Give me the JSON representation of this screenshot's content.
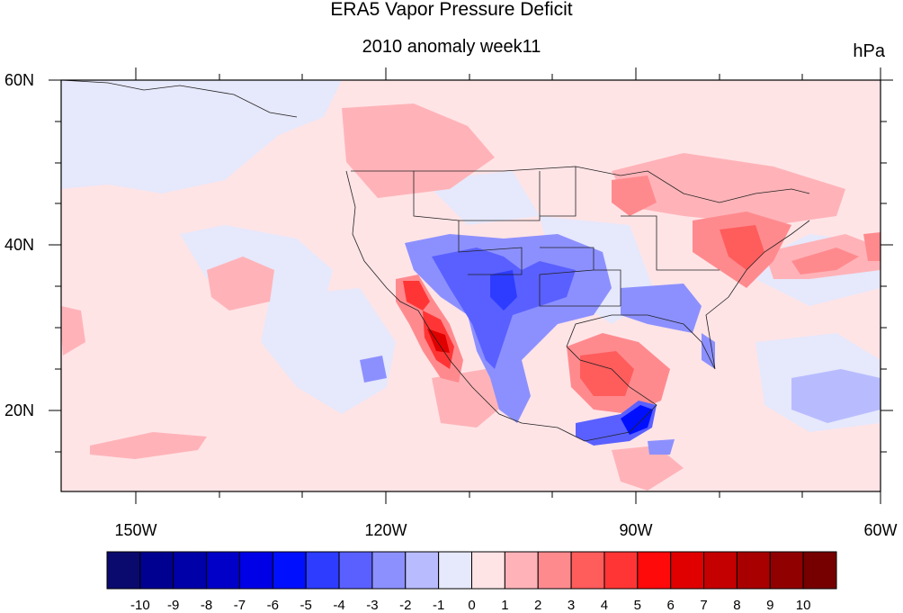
{
  "title": "ERA5 Vapor Pressure Deficit",
  "subtitle": "2010 anomaly week11",
  "units": "hPa",
  "map": {
    "lon_range": [
      -160,
      -60
    ],
    "lat_range": [
      10,
      60
    ],
    "x_tick_labels": [
      "150W",
      "120W",
      "90W",
      "60W"
    ],
    "y_tick_labels": [
      "60N",
      "40N",
      "20N"
    ]
  },
  "colorbar": {
    "labels": [
      "-10",
      "-9",
      "-8",
      "-7",
      "-6",
      "-5",
      "-4",
      "-3",
      "-2",
      "-1",
      "0",
      "1",
      "2",
      "3",
      "4",
      "5",
      "6",
      "7",
      "8",
      "9",
      "10"
    ],
    "colors": [
      "#0a0a6e",
      "#000090",
      "#0000a8",
      "#0000c8",
      "#0000e6",
      "#0010ff",
      "#2d3cff",
      "#5a60ff",
      "#8c90ff",
      "#b8bcff",
      "#e6e8fb",
      "#ffe4e6",
      "#ffb3b8",
      "#ff8a8e",
      "#ff5c5c",
      "#ff3535",
      "#ff0a0a",
      "#e00000",
      "#c40000",
      "#a80000",
      "#900000",
      "#760000"
    ]
  }
}
